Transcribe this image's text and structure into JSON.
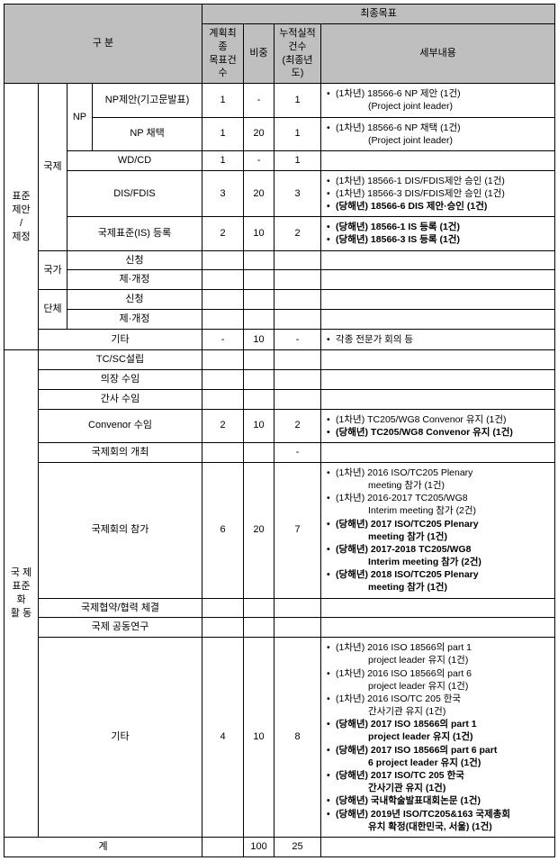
{
  "header": {
    "category": "구  분",
    "final_goal": "최종목표",
    "planned_count": "계획최종\n목표건수",
    "weight": "비중",
    "cumulative": "누적실적\n건수\n(최종년도)",
    "detail": "세부내용"
  },
  "groups": {
    "proposal": "표준\n제안\n/\n제정",
    "intl_activity": "국 제\n표준화\n활  동",
    "intl": "국제",
    "national": "국가",
    "group": "단체"
  },
  "rows": {
    "np": "NP",
    "np_proposal": "NP제안(기고문발표)",
    "np_adopt": "NP 채택",
    "wd_cd": "WD/CD",
    "dis_fdis": "DIS/FDIS",
    "is_reg": "국제표준(IS) 등록",
    "apply": "신청",
    "revise": "제·개정",
    "etc": "기타",
    "tc_sc": "TC/SC설립",
    "chair": "의장 수임",
    "secretary": "간사 수임",
    "convenor": "Convenor 수임",
    "intl_open": "국제회의 개최",
    "intl_attend": "국제회의 참가",
    "intl_agree": "국제협약/협력 체결",
    "intl_joint": "국제 공동연구",
    "total": "계"
  },
  "v": {
    "np_proposal": {
      "p": "1",
      "w": "-",
      "c": "1"
    },
    "np_adopt": {
      "p": "1",
      "w": "20",
      "c": "1"
    },
    "wd_cd": {
      "p": "1",
      "w": "-",
      "c": "1"
    },
    "dis_fdis": {
      "p": "3",
      "w": "20",
      "c": "3"
    },
    "is_reg": {
      "p": "2",
      "w": "10",
      "c": "2"
    },
    "etc1": {
      "p": "-",
      "w": "10",
      "c": "-"
    },
    "convenor": {
      "p": "2",
      "w": "10",
      "c": "2"
    },
    "intl_open": {
      "c": "-"
    },
    "intl_attend": {
      "p": "6",
      "w": "20",
      "c": "7"
    },
    "etc2": {
      "p": "4",
      "w": "10",
      "c": "8"
    },
    "total": {
      "w": "100",
      "c": "25"
    }
  },
  "d": {
    "np_proposal": [
      {
        "t": "(1차년) 18566-6 NP 제안 (1건)"
      },
      {
        "t": "(Project joint leader)",
        "sub": true
      }
    ],
    "np_adopt": [
      {
        "t": "(1차년) 18566-6 NP 채택 (1건)"
      },
      {
        "t": "(Project joint leader)",
        "sub": true
      }
    ],
    "dis_fdis": [
      {
        "t": "(1차년) 18566-1 DIS/FDIS제안 승인 (1건)"
      },
      {
        "t": "(1차년) 18566-3 DIS/FDIS제안 승인 (1건)"
      },
      {
        "t": "(당해년) 18566-6 DIS 제안·승인 (1건)",
        "b": true
      }
    ],
    "is_reg": [
      {
        "t": "(당해년) 18566-1 IS 등록 (1건)",
        "b": true
      },
      {
        "t": "(당해년) 18566-3 IS 등록 (1건)",
        "b": true
      }
    ],
    "etc1": [
      {
        "t": "각종 전문가 회의 등"
      }
    ],
    "convenor": [
      {
        "t": "(1차년) TC205/WG8 Convenor 유지 (1건)"
      },
      {
        "t": "(당해년) TC205/WG8 Convenor 유지 (1건)",
        "b": true
      }
    ],
    "intl_attend": [
      {
        "t": "(1차년) 2016 ISO/TC205 Plenary"
      },
      {
        "t": "meeting 참가 (1건)",
        "sub": true
      },
      {
        "t": "(1차년) 2016-2017 TC205/WG8"
      },
      {
        "t": "Interim meeting 참가 (2건)",
        "sub": true
      },
      {
        "t": "(당해년) 2017 ISO/TC205 Plenary",
        "b": true
      },
      {
        "t": "meeting 참가 (1건)",
        "sub": true,
        "b": true
      },
      {
        "t": "(당해년) 2017-2018 TC205/WG8",
        "b": true
      },
      {
        "t": "Interim meeting 참가 (2건)",
        "sub": true,
        "b": true
      },
      {
        "t": "(당해년) 2018 ISO/TC205 Plenary",
        "b": true
      },
      {
        "t": "meeting 참가 (1건)",
        "sub": true,
        "b": true
      }
    ],
    "etc2": [
      {
        "t": "(1차년) 2016 ISO 18566의 part 1"
      },
      {
        "t": "project leader 유지 (1건)",
        "sub": true
      },
      {
        "t": "(1차년) 2016 ISO 18566의 part 6"
      },
      {
        "t": "project leader 유지 (1건)",
        "sub": true
      },
      {
        "t": "(1차년) 2016 ISO/TC 205 한국"
      },
      {
        "t": "간사기관 유지 (1건)",
        "sub": true
      },
      {
        "t": "(당해년) 2017 ISO 18566의 part 1",
        "b": true
      },
      {
        "t": "project leader 유지 (1건)",
        "sub": true,
        "b": true
      },
      {
        "t": "(당해년) 2017 ISO 18566의 part 6 part",
        "b": true
      },
      {
        "t": "6 project leader 유지 (1건)",
        "sub": true,
        "b": true
      },
      {
        "t": "(당해년) 2017 ISO/TC 205 한국",
        "b": true
      },
      {
        "t": "간사기관 유지 (1건)",
        "sub": true,
        "b": true
      },
      {
        "t": "(당해년) 국내학술발표대회논문 (1건)",
        "b": true
      },
      {
        "t": "(당해년) 2019년 ISO/TC205&163 국제총회",
        "b": true
      },
      {
        "t": "유치 확정(대한민국, 서울) (1건)",
        "sub": true,
        "b": true
      }
    ]
  }
}
